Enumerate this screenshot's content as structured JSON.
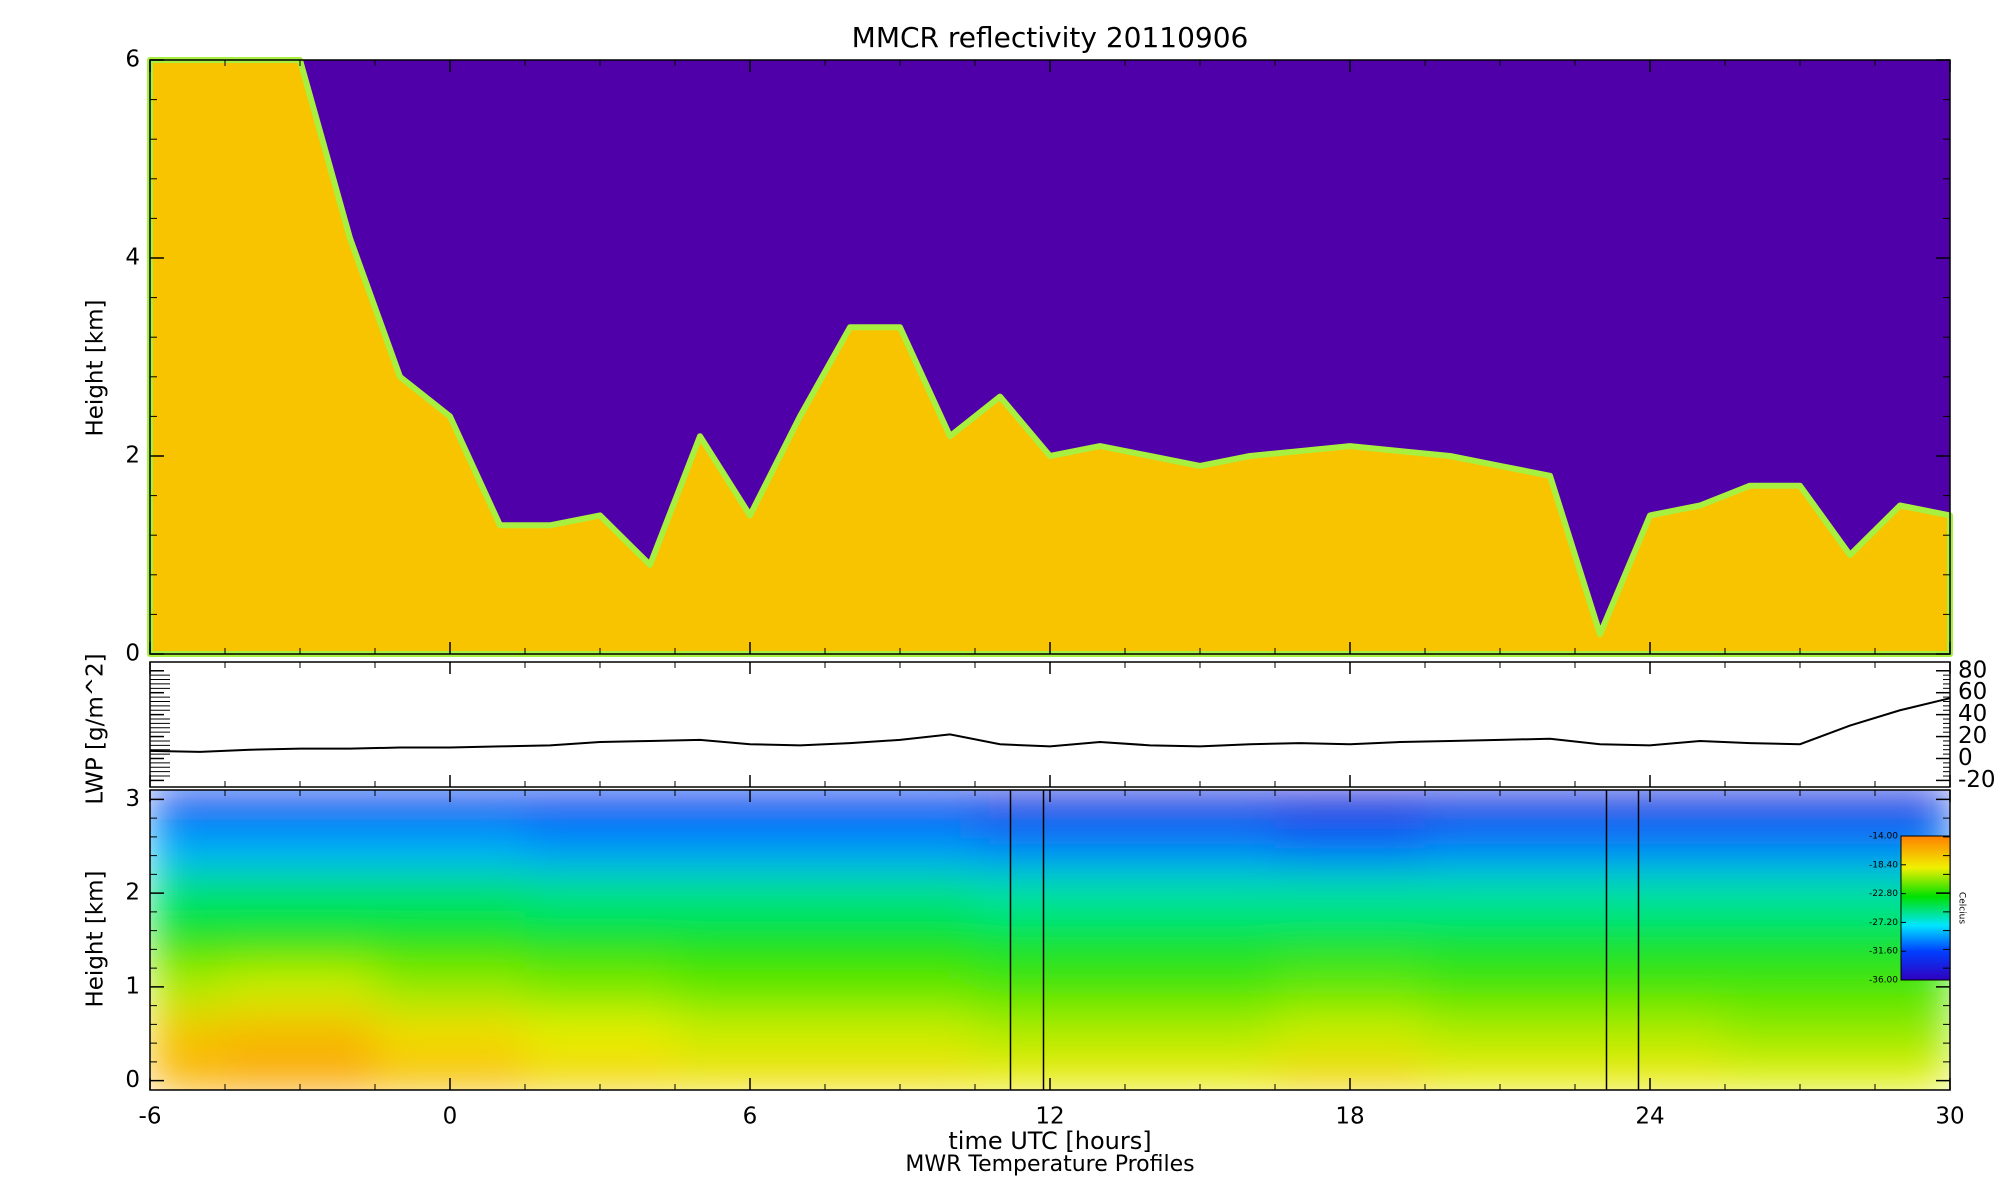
{
  "chart_data": [
    {
      "type": "area",
      "title": "MMCR reflectivity     20110906",
      "ylabel": "Height [km]",
      "x": [
        -6,
        -5,
        -4,
        -3,
        -2,
        -1,
        0,
        1,
        2,
        3,
        4,
        5,
        6,
        7,
        8,
        9,
        10,
        11,
        12,
        13,
        14,
        15,
        16,
        17,
        18,
        19,
        20,
        21,
        22,
        23,
        24,
        25,
        26,
        27,
        28,
        29,
        30
      ],
      "values": [
        6,
        6,
        6,
        6,
        4.2,
        2.8,
        2.4,
        1.3,
        1.3,
        1.4,
        0.9,
        2.2,
        1.4,
        2.4,
        3.3,
        3.3,
        2.2,
        2.6,
        2.0,
        2.1,
        2.0,
        1.9,
        2.0,
        2.05,
        2.1,
        2.05,
        2.0,
        1.9,
        1.8,
        0.2,
        1.4,
        1.5,
        1.7,
        1.7,
        1.0,
        1.5,
        1.4
      ],
      "color": "#f8c400",
      "edge_color": "#a8f040",
      "background": "#5000a8",
      "xlim": [
        -6,
        30
      ],
      "xticks": [
        -6,
        0,
        6,
        12,
        18,
        24,
        30
      ],
      "ylim": [
        0,
        6
      ],
      "yticks": [
        0,
        2,
        4,
        6
      ]
    },
    {
      "type": "line",
      "ylabel": "LWP [g/m^2]",
      "x": [
        -6,
        -5,
        -4,
        -3,
        -2,
        -1,
        0,
        1,
        2,
        3,
        4,
        5,
        6,
        7,
        8,
        9,
        10,
        11,
        12,
        13,
        14,
        15,
        16,
        17,
        18,
        19,
        20,
        21,
        22,
        23,
        24,
        25,
        26,
        27,
        28,
        29,
        30
      ],
      "values": [
        7,
        6,
        8,
        9,
        9,
        10,
        10,
        11,
        12,
        15,
        16,
        17,
        13,
        12,
        14,
        17,
        22,
        13,
        11,
        15,
        12,
        11,
        13,
        14,
        13,
        15,
        16,
        17,
        18,
        13,
        12,
        16,
        14,
        13,
        30,
        44,
        55
      ],
      "color": "#000000",
      "yaxis_side": "right",
      "xlim": [
        -6,
        30
      ],
      "xticks": [
        -6,
        0,
        6,
        12,
        18,
        24,
        30
      ],
      "ylim": [
        -26,
        88
      ],
      "yticks": [
        -20,
        0,
        20,
        40,
        60,
        80
      ]
    },
    {
      "type": "heatmap",
      "ylabel": "Height [km]",
      "xlabel": "time UTC [hours]",
      "caption": "MWR Temperature Profiles",
      "x": [
        -6,
        -3,
        0,
        3,
        6,
        9,
        12,
        15,
        18,
        21,
        24,
        27,
        30
      ],
      "y": [
        0,
        0.5,
        1,
        1.5,
        2,
        2.5,
        3
      ],
      "z": [
        [
          -16,
          -15.5,
          -16.5,
          -17.5,
          -18,
          -18,
          -18.5,
          -18.5,
          -17.5,
          -18.5,
          -18.5,
          -19,
          -19
        ],
        [
          -17,
          -16.5,
          -18,
          -19,
          -19.5,
          -19.5,
          -20,
          -20,
          -19.5,
          -20,
          -20,
          -20.5,
          -20.5
        ],
        [
          -20,
          -19.5,
          -20.5,
          -21,
          -21.5,
          -21.5,
          -22,
          -22,
          -21.5,
          -22,
          -22,
          -22,
          -22
        ],
        [
          -23,
          -23,
          -23,
          -23.5,
          -23.5,
          -23.5,
          -24,
          -24,
          -24,
          -24,
          -24,
          -24,
          -24
        ],
        [
          -25,
          -25,
          -25,
          -25.5,
          -25.5,
          -25.5,
          -26,
          -26,
          -26,
          -26,
          -26,
          -26,
          -26
        ],
        [
          -29,
          -29,
          -29,
          -29.5,
          -29.5,
          -29.5,
          -30,
          -30,
          -30.5,
          -30,
          -30,
          -30,
          -30
        ],
        [
          -33,
          -33,
          -33,
          -33,
          -33,
          -33,
          -34,
          -34,
          -34.5,
          -34,
          -34,
          -34,
          -34
        ]
      ],
      "vlines": [
        11.21,
        11.87,
        23.13,
        23.77
      ],
      "clim": [
        -36,
        -14
      ],
      "colorbar_label": "Celcius",
      "colorbar_ticks": [
        {
          "value": -14,
          "label": "-14.00"
        },
        {
          "value": -18.4,
          "label": "-18.40"
        },
        {
          "value": -22.8,
          "label": "-22.80"
        },
        {
          "value": -27.2,
          "label": "-27.20"
        },
        {
          "value": -31.6,
          "label": "-31.60"
        },
        {
          "value": -36,
          "label": "-36.00"
        }
      ],
      "xlim": [
        -6,
        30
      ],
      "xticks": [
        -6,
        0,
        6,
        12,
        18,
        24,
        30
      ],
      "ylim": [
        -0.1,
        3.1
      ],
      "yticks": [
        0,
        1,
        2,
        3
      ]
    }
  ]
}
